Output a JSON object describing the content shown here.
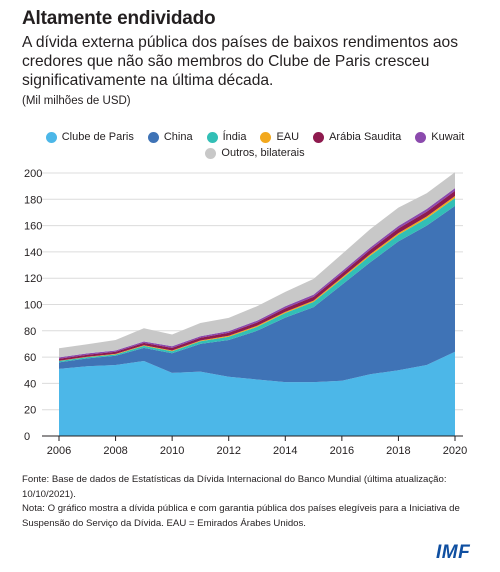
{
  "header": {
    "title": "Altamente endividado",
    "subtitle": "A dívida externa pública dos países de baixos rendimentos aos credores que não são membros do Clube de Paris cresceu significativamente na última década.",
    "unit": "(Mil milhões de USD)"
  },
  "notes": {
    "source": "Fonte: Base de dados de Estatísticas da Dívida Internacional do Banco Mundial (última atualização: 10/10/2021).",
    "note": "Nota: O gráfico mostra a dívida pública e com garantia pública dos países elegíveis para a Iniciativa de Suspensão do Serviço da Dívida. EAU = Emirados Árabes Unidos."
  },
  "logo": "IMF",
  "chart_data": {
    "type": "area",
    "stacked": true,
    "x": [
      2006,
      2007,
      2008,
      2009,
      2010,
      2011,
      2012,
      2013,
      2014,
      2015,
      2016,
      2017,
      2018,
      2019,
      2020
    ],
    "xticks": [
      2006,
      2008,
      2010,
      2012,
      2014,
      2016,
      2018,
      2020
    ],
    "yticks": [
      0,
      20,
      40,
      60,
      80,
      100,
      120,
      140,
      160,
      180,
      200
    ],
    "ylim": [
      0,
      200
    ],
    "xlim": [
      2006,
      2020
    ],
    "legend_position": "top",
    "grid": "horizontal",
    "series": [
      {
        "name": "Clube de Paris",
        "color": "#4cb7e8",
        "values": [
          51,
          53,
          54,
          57,
          48,
          49,
          45,
          43,
          41,
          41,
          42,
          47,
          50,
          54,
          64
        ]
      },
      {
        "name": "China",
        "color": "#3f73b6",
        "values": [
          5,
          6,
          7,
          10,
          15,
          21,
          28,
          37,
          49,
          57,
          73,
          85,
          98,
          106,
          111
        ]
      },
      {
        "name": "Índia",
        "color": "#32bfb6",
        "values": [
          1,
          1,
          1,
          1.5,
          1.5,
          2,
          2.5,
          3,
          3.5,
          4,
          4.5,
          5,
          5,
          5.5,
          6
        ]
      },
      {
        "name": "EAU",
        "color": "#f2a81d",
        "values": [
          0.3,
          0.3,
          0.4,
          0.5,
          0.5,
          0.6,
          0.7,
          0.8,
          0.9,
          1,
          1,
          1.2,
          1.3,
          1.4,
          1.5
        ]
      },
      {
        "name": "Arábia Saudita",
        "color": "#8e1a4e",
        "values": [
          1.5,
          1.5,
          1.6,
          1.8,
          2,
          2.1,
          2.3,
          2.5,
          2.7,
          2.9,
          3.1,
          3.3,
          3.5,
          3.7,
          3.9
        ]
      },
      {
        "name": "Kuwait",
        "color": "#8b4aad",
        "values": [
          1,
          1,
          1,
          1.1,
          1.2,
          1.2,
          1.3,
          1.4,
          1.5,
          1.6,
          1.7,
          1.8,
          1.9,
          2,
          2.1
        ]
      },
      {
        "name": "Outros, bilaterais",
        "color": "#c8c8c8",
        "values": [
          7,
          7,
          8,
          10,
          9,
          10,
          10,
          11,
          11,
          12,
          13,
          14,
          14,
          12,
          12
        ]
      }
    ]
  }
}
